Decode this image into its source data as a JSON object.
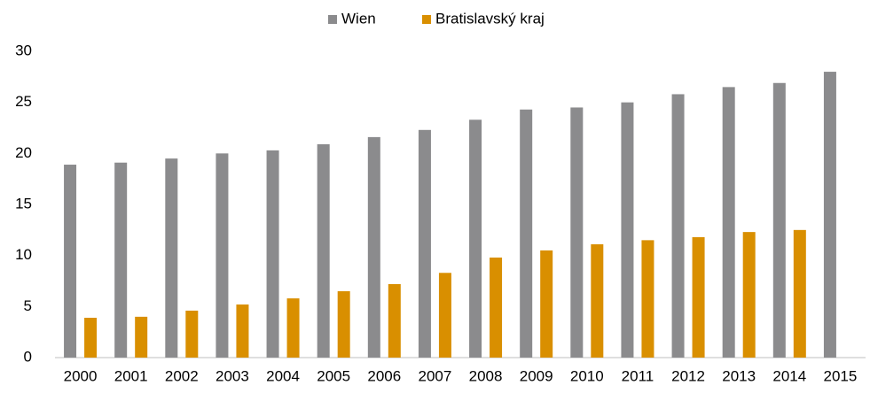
{
  "chart_data": {
    "type": "bar",
    "categories": [
      "2000",
      "2001",
      "2002",
      "2003",
      "2004",
      "2005",
      "2006",
      "2007",
      "2008",
      "2009",
      "2010",
      "2011",
      "2012",
      "2013",
      "2014",
      "2015"
    ],
    "series": [
      {
        "name": "Wien",
        "color": "#8b8b8d",
        "values": [
          18.9,
          19.1,
          19.5,
          20.0,
          20.3,
          20.9,
          21.6,
          22.3,
          23.3,
          24.3,
          24.5,
          25.0,
          25.8,
          26.5,
          26.9,
          28.0
        ]
      },
      {
        "name": "Bratislavský kraj",
        "color": "#d98f00",
        "values": [
          3.9,
          4.0,
          4.6,
          5.2,
          5.8,
          6.5,
          7.2,
          8.3,
          9.8,
          10.5,
          11.1,
          11.5,
          11.8,
          12.3,
          12.5,
          null
        ]
      }
    ],
    "ylim": [
      0,
      30
    ],
    "yticks": [
      0,
      5,
      10,
      15,
      20,
      25,
      30
    ],
    "grid": false,
    "legend": "top"
  }
}
